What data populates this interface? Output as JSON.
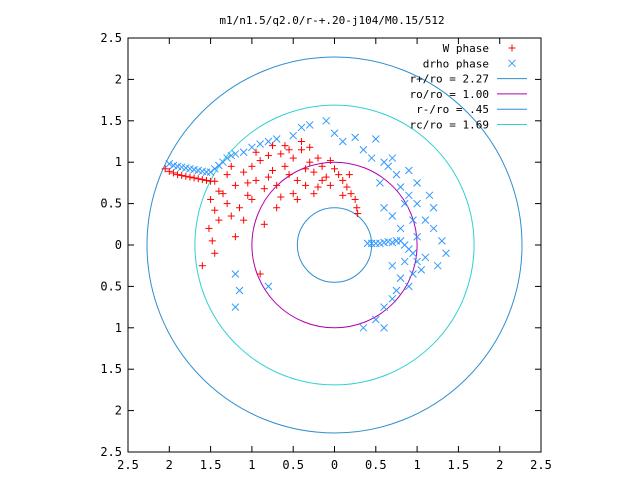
{
  "chart_data": {
    "type": "scatter",
    "title": "m1/n1.5/q2.0/r-+.20-j104/M0.15/512",
    "xlim": [
      -2.5,
      2.5
    ],
    "ylim": [
      -2.5,
      2.5
    ],
    "x_tick_labels": [
      "2.5",
      "2",
      "1.5",
      "1",
      "0.5",
      "0",
      "0.5",
      "1",
      "1.5",
      "2",
      "2.5"
    ],
    "y_tick_labels": [
      "2.5",
      "2",
      "1.5",
      "1",
      "0.5",
      "0",
      "0.5",
      "1",
      "1.5",
      "2",
      "2.5"
    ],
    "x_ticks": [
      -2.5,
      -2,
      -1.5,
      -1,
      -0.5,
      0,
      0.5,
      1,
      1.5,
      2,
      2.5
    ],
    "y_ticks": [
      2.5,
      2,
      1.5,
      1,
      0.5,
      0,
      -0.5,
      -1,
      -1.5,
      -2,
      -2.5
    ],
    "grid": false,
    "legend_position": "top-right",
    "series": [
      {
        "name": "W phase",
        "marker": "+",
        "color": "#ff0000",
        "points": [
          [
            -2.05,
            0.92
          ],
          [
            -2.0,
            0.89
          ],
          [
            -1.95,
            0.87
          ],
          [
            -1.9,
            0.85
          ],
          [
            -1.85,
            0.84
          ],
          [
            -1.8,
            0.83
          ],
          [
            -1.75,
            0.82
          ],
          [
            -1.7,
            0.81
          ],
          [
            -1.65,
            0.8
          ],
          [
            -1.6,
            0.79
          ],
          [
            -1.55,
            0.78
          ],
          [
            -1.5,
            0.77
          ],
          [
            -1.45,
            0.77
          ],
          [
            -1.5,
            0.55
          ],
          [
            -1.45,
            0.42
          ],
          [
            -1.52,
            0.2
          ],
          [
            -1.48,
            0.05
          ],
          [
            -1.45,
            -0.1
          ],
          [
            -1.4,
            0.3
          ],
          [
            -1.35,
            0.62
          ],
          [
            -1.3,
            0.5
          ],
          [
            -1.25,
            0.35
          ],
          [
            -1.2,
            0.72
          ],
          [
            -1.15,
            0.45
          ],
          [
            -1.1,
            0.88
          ],
          [
            -1.05,
            0.6
          ],
          [
            -1.0,
            0.95
          ],
          [
            -0.95,
            0.78
          ],
          [
            -0.9,
            1.02
          ],
          [
            -0.85,
            0.68
          ],
          [
            -0.8,
            1.08
          ],
          [
            -0.75,
            0.9
          ],
          [
            -0.7,
            0.72
          ],
          [
            -0.65,
            1.1
          ],
          [
            -0.6,
            0.95
          ],
          [
            -0.55,
            0.85
          ],
          [
            -0.5,
            1.05
          ],
          [
            -0.45,
            0.78
          ],
          [
            -0.4,
            1.15
          ],
          [
            -0.35,
            0.92
          ],
          [
            -0.3,
            1.0
          ],
          [
            -0.25,
            0.88
          ],
          [
            -0.2,
            1.05
          ],
          [
            -0.15,
            0.95
          ],
          [
            -0.1,
            0.82
          ],
          [
            -0.05,
            1.02
          ],
          [
            0.0,
            0.92
          ],
          [
            0.05,
            0.85
          ],
          [
            0.1,
            0.78
          ],
          [
            0.15,
            0.7
          ],
          [
            0.2,
            0.62
          ],
          [
            0.25,
            0.55
          ],
          [
            0.27,
            0.45
          ],
          [
            0.28,
            0.38
          ],
          [
            -1.1,
            0.3
          ],
          [
            -0.9,
            -0.35
          ],
          [
            -1.0,
            0.55
          ],
          [
            -0.7,
            0.45
          ],
          [
            -0.5,
            0.62
          ],
          [
            -0.6,
            1.2
          ],
          [
            -0.4,
            1.25
          ],
          [
            -0.3,
            1.18
          ],
          [
            -0.2,
            0.7
          ],
          [
            -1.6,
            -0.25
          ],
          [
            -1.2,
            0.1
          ],
          [
            -0.85,
            0.25
          ],
          [
            -1.3,
            0.85
          ],
          [
            -0.95,
            1.12
          ],
          [
            -0.75,
            1.2
          ],
          [
            -0.55,
            1.15
          ],
          [
            -0.45,
            0.55
          ],
          [
            -0.35,
            0.72
          ],
          [
            -0.15,
            0.78
          ],
          [
            -0.05,
            0.72
          ],
          [
            0.1,
            0.6
          ],
          [
            0.18,
            0.85
          ],
          [
            -0.25,
            0.62
          ],
          [
            -0.65,
            0.58
          ],
          [
            -1.05,
            0.75
          ],
          [
            -1.4,
            0.65
          ],
          [
            -1.25,
            0.95
          ],
          [
            -0.8,
            0.82
          ]
        ]
      },
      {
        "name": "drho phase",
        "marker": "x",
        "color": "#3399ff",
        "points": [
          [
            -2.0,
            0.98
          ],
          [
            -1.95,
            0.96
          ],
          [
            -1.9,
            0.95
          ],
          [
            -1.85,
            0.94
          ],
          [
            -1.8,
            0.93
          ],
          [
            -1.75,
            0.92
          ],
          [
            -1.7,
            0.91
          ],
          [
            -1.65,
            0.9
          ],
          [
            -1.6,
            0.89
          ],
          [
            -1.55,
            0.88
          ],
          [
            -1.5,
            0.88
          ],
          [
            -1.45,
            0.92
          ],
          [
            -1.4,
            0.96
          ],
          [
            -1.35,
            1.0
          ],
          [
            -1.3,
            1.05
          ],
          [
            -1.25,
            1.08
          ],
          [
            -1.2,
            1.1
          ],
          [
            -1.1,
            1.12
          ],
          [
            -1.0,
            1.18
          ],
          [
            -0.9,
            1.22
          ],
          [
            -0.8,
            1.25
          ],
          [
            -0.7,
            1.28
          ],
          [
            -0.5,
            1.32
          ],
          [
            -0.4,
            1.42
          ],
          [
            -0.3,
            1.45
          ],
          [
            -0.1,
            1.5
          ],
          [
            0.0,
            1.35
          ],
          [
            0.1,
            1.25
          ],
          [
            0.25,
            1.3
          ],
          [
            0.35,
            1.15
          ],
          [
            0.5,
            1.28
          ],
          [
            0.45,
            1.05
          ],
          [
            0.6,
            1.0
          ],
          [
            0.65,
            0.95
          ],
          [
            0.7,
            1.05
          ],
          [
            0.75,
            0.85
          ],
          [
            0.8,
            0.7
          ],
          [
            0.85,
            0.5
          ],
          [
            0.9,
            0.6
          ],
          [
            1.0,
            0.5
          ],
          [
            1.1,
            0.3
          ],
          [
            1.2,
            0.2
          ],
          [
            1.3,
            0.05
          ],
          [
            1.35,
            -0.1
          ],
          [
            0.4,
            0.02
          ],
          [
            0.45,
            0.02
          ],
          [
            0.5,
            0.02
          ],
          [
            0.55,
            0.02
          ],
          [
            0.6,
            0.03
          ],
          [
            0.65,
            0.04
          ],
          [
            0.7,
            0.03
          ],
          [
            0.75,
            0.05
          ],
          [
            0.8,
            0.05
          ],
          [
            0.85,
            0.0
          ],
          [
            0.9,
            -0.05
          ],
          [
            0.95,
            -0.1
          ],
          [
            1.0,
            -0.2
          ],
          [
            1.05,
            -0.3
          ],
          [
            0.8,
            -0.4
          ],
          [
            0.75,
            -0.55
          ],
          [
            0.7,
            -0.65
          ],
          [
            0.6,
            -0.75
          ],
          [
            0.5,
            -0.9
          ],
          [
            0.35,
            -1.0
          ],
          [
            0.6,
            -1.0
          ],
          [
            0.9,
            -0.5
          ],
          [
            1.1,
            -0.15
          ],
          [
            -1.2,
            -0.35
          ],
          [
            -1.15,
            -0.55
          ],
          [
            -1.2,
            -0.75
          ],
          [
            -0.8,
            -0.5
          ],
          [
            1.15,
            0.6
          ],
          [
            1.2,
            0.45
          ],
          [
            0.95,
            0.3
          ],
          [
            0.8,
            0.2
          ],
          [
            0.7,
            0.35
          ],
          [
            0.6,
            0.45
          ],
          [
            0.9,
            0.9
          ],
          [
            0.55,
            0.75
          ],
          [
            1.0,
            0.75
          ],
          [
            0.85,
            -0.2
          ],
          [
            1.0,
            0.1
          ],
          [
            0.7,
            -0.25
          ],
          [
            0.95,
            -0.35
          ],
          [
            1.25,
            -0.25
          ]
        ]
      }
    ],
    "circles": [
      {
        "name": "r+/ro = 2.27",
        "radius": 2.27,
        "color": "#2f8fd0"
      },
      {
        "name": "ro/ro = 1.00",
        "radius": 1.0,
        "color": "#b000b0"
      },
      {
        "name": "r-/ro = .45",
        "radius": 0.45,
        "color": "#2f8fd0"
      },
      {
        "name": "rc/ro = 1.69",
        "radius": 1.69,
        "color": "#30d0d0"
      }
    ]
  }
}
